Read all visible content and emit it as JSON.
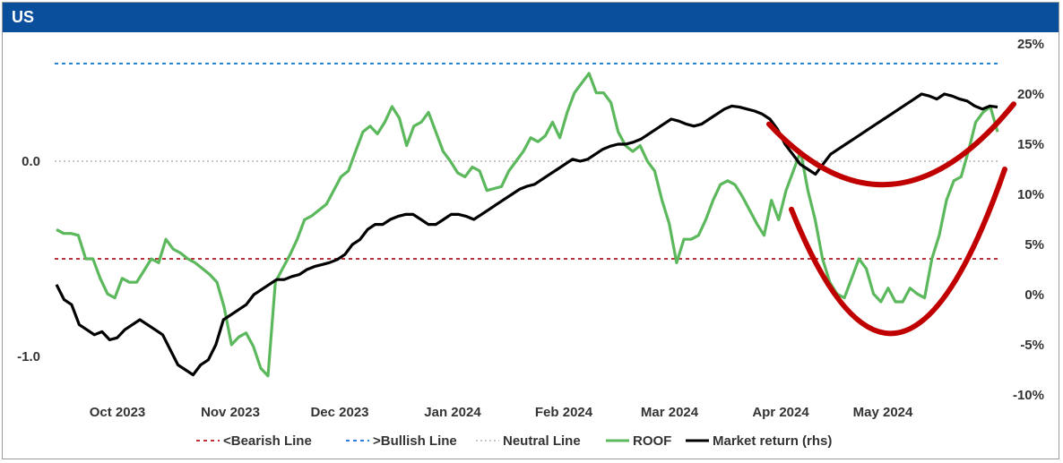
{
  "header": {
    "title": "US"
  },
  "chart_data": {
    "type": "line",
    "title": "US",
    "left_axis": {
      "ticks": [
        0.0,
        -1.0
      ],
      "tick_labels": [
        "0.0",
        "-1.0"
      ],
      "range": [
        -1.3,
        0.62
      ]
    },
    "right_axis": {
      "ticks": [
        25,
        20,
        15,
        10,
        5,
        0,
        -5,
        -10
      ],
      "tick_labels": [
        "25%",
        "20%",
        "15%",
        "10%",
        "5%",
        "0%",
        "-5%",
        "-10%"
      ],
      "range": [
        -10,
        25
      ]
    },
    "x_labels": [
      "Oct 2023",
      "Nov 2023",
      "Dec 2023",
      "Jan 2024",
      "Feb 2024",
      "Mar 2024",
      "Apr 2024",
      "May 2024"
    ],
    "reference_lines": [
      {
        "name": "<Bearish Line",
        "value": -0.5,
        "color": "#c0303a",
        "dash": "4,4"
      },
      {
        "name": ">Bullish Line",
        "value": 0.5,
        "color": "#2a82d4",
        "dash": "4,4"
      },
      {
        "name": "Neutral Line",
        "value": 0.0,
        "color": "#c8c8c8",
        "dash": "2,3"
      }
    ],
    "series": [
      {
        "name": "ROOF",
        "axis": "left",
        "color": "#5cb85c",
        "values": [
          -0.35,
          -0.37,
          -0.37,
          -0.38,
          -0.5,
          -0.5,
          -0.6,
          -0.68,
          -0.7,
          -0.6,
          -0.62,
          -0.62,
          -0.56,
          -0.5,
          -0.52,
          -0.4,
          -0.45,
          -0.47,
          -0.5,
          -0.52,
          -0.55,
          -0.58,
          -0.62,
          -0.75,
          -0.94,
          -0.9,
          -0.88,
          -0.95,
          -1.06,
          -1.1,
          -0.62,
          -0.55,
          -0.48,
          -0.4,
          -0.3,
          -0.28,
          -0.25,
          -0.22,
          -0.15,
          -0.08,
          -0.05,
          0.05,
          0.15,
          0.18,
          0.14,
          0.2,
          0.28,
          0.22,
          0.08,
          0.18,
          0.2,
          0.25,
          0.15,
          0.05,
          0.0,
          -0.06,
          -0.08,
          -0.03,
          -0.05,
          -0.15,
          -0.14,
          -0.13,
          -0.05,
          0.0,
          0.05,
          0.12,
          0.1,
          0.13,
          0.2,
          0.12,
          0.25,
          0.35,
          0.4,
          0.45,
          0.35,
          0.35,
          0.3,
          0.15,
          0.08,
          0.05,
          0.08,
          0.0,
          -0.05,
          -0.2,
          -0.32,
          -0.52,
          -0.4,
          -0.4,
          -0.38,
          -0.3,
          -0.2,
          -0.12,
          -0.1,
          -0.12,
          -0.18,
          -0.25,
          -0.32,
          -0.38,
          -0.2,
          -0.3,
          -0.15,
          -0.05,
          0.05,
          -0.15,
          -0.3,
          -0.5,
          -0.62,
          -0.68,
          -0.7,
          -0.6,
          -0.5,
          -0.55,
          -0.68,
          -0.72,
          -0.65,
          -0.72,
          -0.72,
          -0.65,
          -0.68,
          -0.7,
          -0.5,
          -0.38,
          -0.2,
          -0.1,
          -0.08,
          0.05,
          0.2,
          0.25,
          0.28,
          0.15
        ]
      },
      {
        "name": "Market return (rhs)",
        "axis": "right",
        "color": "#000000",
        "values": [
          1.0,
          -0.5,
          -1.0,
          -3.0,
          -3.5,
          -4.0,
          -3.7,
          -4.5,
          -4.3,
          -3.5,
          -3.0,
          -2.5,
          -3.0,
          -3.5,
          -4.0,
          -5.5,
          -7.0,
          -7.5,
          -8.0,
          -7.0,
          -6.5,
          -5.0,
          -2.5,
          -2.0,
          -1.5,
          -1.0,
          0.0,
          0.5,
          1.0,
          1.5,
          1.5,
          1.8,
          2.0,
          2.5,
          2.8,
          3.0,
          3.2,
          3.5,
          4.0,
          5.0,
          5.5,
          6.5,
          7.0,
          7.0,
          7.5,
          7.8,
          8.0,
          8.0,
          7.5,
          7.0,
          7.0,
          7.5,
          8.0,
          8.0,
          7.8,
          7.5,
          8.0,
          8.5,
          9.0,
          9.5,
          10.0,
          10.5,
          10.8,
          11.0,
          11.5,
          12.0,
          12.5,
          13.0,
          13.5,
          13.3,
          13.5,
          14.0,
          14.5,
          14.8,
          15.0,
          15.0,
          15.2,
          15.5,
          16.0,
          16.5,
          17.0,
          17.5,
          17.3,
          17.0,
          16.8,
          17.0,
          17.5,
          18.0,
          18.5,
          18.8,
          18.7,
          18.5,
          18.3,
          18.0,
          17.5,
          16.5,
          15.0,
          14.0,
          13.0,
          12.5,
          12.0,
          13.0,
          14.0,
          14.5,
          15.0,
          15.5,
          16.0,
          16.5,
          17.0,
          17.5,
          18.0,
          18.5,
          19.0,
          19.5,
          20.0,
          19.8,
          19.5,
          20.0,
          19.8,
          19.5,
          19.3,
          18.8,
          18.5,
          18.8,
          18.7
        ]
      }
    ],
    "annotations": [
      {
        "type": "curve",
        "color": "#c00000",
        "description": "upper arc",
        "points": [
          [
            0.0,
            17.0
          ],
          [
            0.5,
            11.0
          ],
          [
            1.0,
            19.0
          ]
        ]
      },
      {
        "type": "curve",
        "color": "#c00000",
        "description": "lower arc",
        "points": [
          [
            0.0,
            8.5
          ],
          [
            0.5,
            -3.8
          ],
          [
            1.0,
            12.5
          ]
        ]
      }
    ],
    "legend": {
      "position": "bottom",
      "entries": [
        "<Bearish Line",
        ">Bullish Line",
        "Neutral Line",
        "ROOF",
        "Market return (rhs)"
      ]
    },
    "grid": false
  }
}
